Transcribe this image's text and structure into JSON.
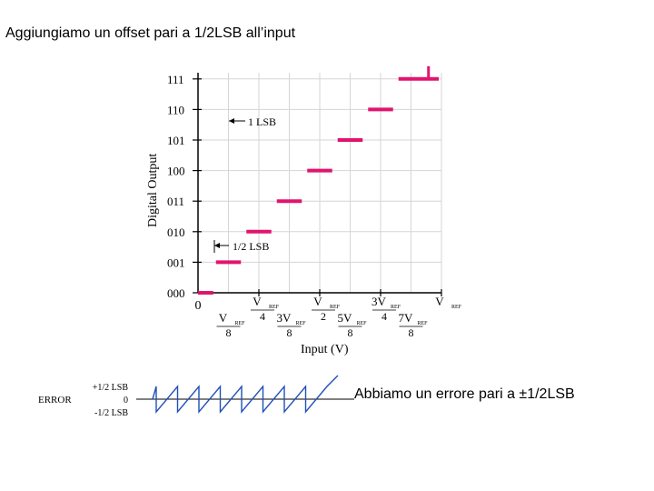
{
  "slide": {
    "title": "Aggiungiamo un offset pari a 1/2LSB all’input",
    "note": "Abbiamo un errore pari a ±1/2LSB"
  },
  "transfer": {
    "y_axis_label": "Digital Output",
    "x_axis_label": "Input (V)",
    "codes": [
      "000",
      "001",
      "010",
      "011",
      "100",
      "101",
      "110",
      "111"
    ],
    "lsb_label": "1 LSB",
    "half_lsb_label": "1/2 LSB",
    "x_ticks_top": [
      {
        "num": "0"
      },
      {
        "num": "V",
        "sub": "REF",
        "den": "4"
      },
      {
        "num": "V",
        "sub": "REF",
        "den": "2"
      },
      {
        "num": "3V",
        "sub": "REF",
        "den": "4"
      },
      {
        "num": "V",
        "sub": "REF",
        "den": ""
      }
    ],
    "x_ticks_bottom": [
      {
        "num": "V",
        "sub": "REF",
        "den": "8"
      },
      {
        "num": "3V",
        "sub": "REF",
        "den": "8"
      },
      {
        "num": "5V",
        "sub": "REF",
        "den": "8"
      },
      {
        "num": "7V",
        "sub": "REF",
        "den": "8"
      }
    ],
    "step_color": "#e0146e",
    "steps": [
      {
        "code": 0,
        "from": 0,
        "to": 0.0625
      },
      {
        "code": 1,
        "from": 0.0625,
        "to": 0.1875
      },
      {
        "code": 2,
        "from": 0.1875,
        "to": 0.3125
      },
      {
        "code": 3,
        "from": 0.3125,
        "to": 0.4375
      },
      {
        "code": 4,
        "from": 0.4375,
        "to": 0.5625
      },
      {
        "code": 5,
        "from": 0.5625,
        "to": 0.6875
      },
      {
        "code": 6,
        "from": 0.6875,
        "to": 0.8125
      },
      {
        "code": 7,
        "from": 0.8125,
        "to": 1.0
      }
    ]
  },
  "error_plot": {
    "label": "ERROR",
    "ticks": [
      {
        "value": 0.5,
        "label": "+1/2 LSB"
      },
      {
        "value": 0,
        "label": "0"
      },
      {
        "value": -0.5,
        "label": "-1/2 LSB"
      }
    ],
    "line_color": "#1f4fb8",
    "teeth": 8
  }
}
